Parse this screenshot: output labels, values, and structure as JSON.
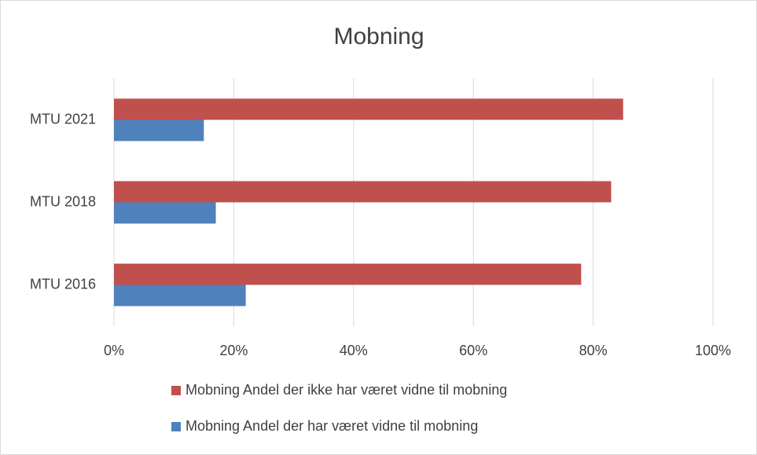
{
  "chart_data": {
    "type": "bar",
    "orientation": "horizontal",
    "title": "Mobning",
    "categories": [
      "MTU 2021",
      "MTU 2018",
      "MTU 2016"
    ],
    "series": [
      {
        "name": "Mobning Andel der ikke har været vidne til mobning",
        "color": "#c0504d",
        "values": [
          85,
          83,
          78
        ]
      },
      {
        "name": "Mobning Andel der har været vidne til mobning",
        "color": "#4f81bd",
        "values": [
          15,
          17,
          22
        ]
      }
    ],
    "xlim": [
      0,
      100
    ],
    "xticks": [
      {
        "value": 0,
        "label": "0%"
      },
      {
        "value": 20,
        "label": "20%"
      },
      {
        "value": 40,
        "label": "40%"
      },
      {
        "value": 60,
        "label": "60%"
      },
      {
        "value": 80,
        "label": "80%"
      },
      {
        "value": 100,
        "label": "100%"
      }
    ],
    "grid": true,
    "legend": "bottom"
  }
}
